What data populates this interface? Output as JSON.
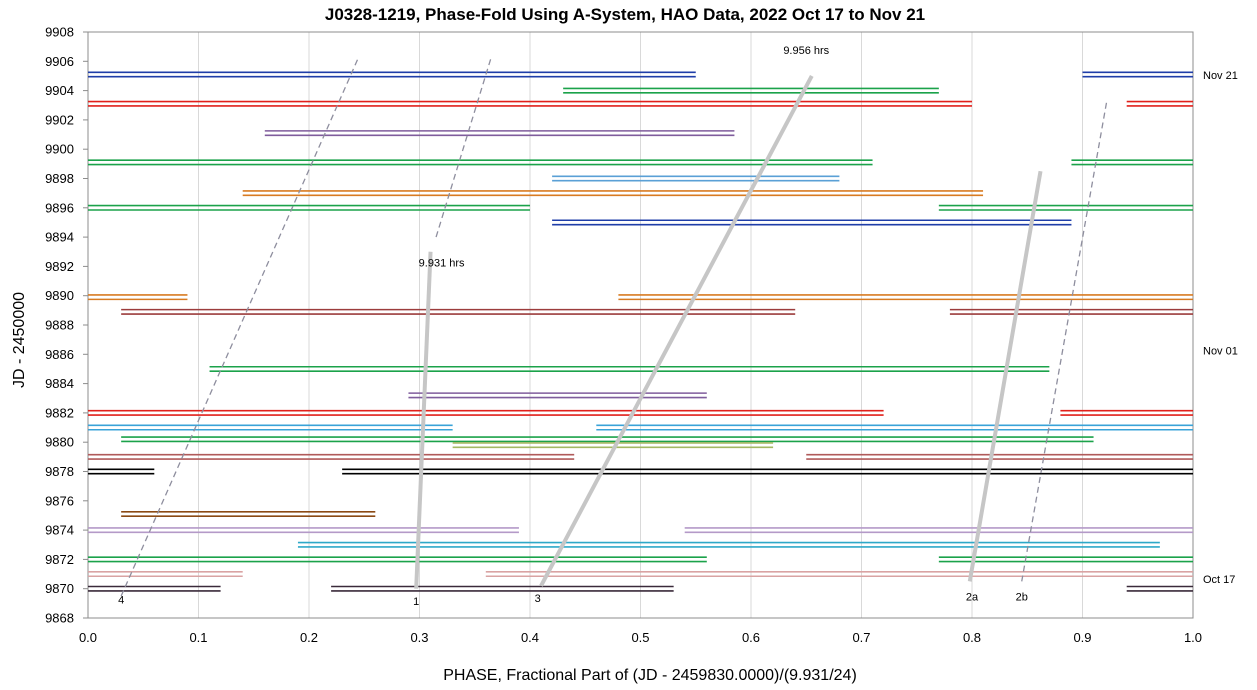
{
  "chart_data": {
    "type": "line",
    "title": "J0328-1219, Phase-Fold Using A-System, HAO Data, 2022 Oct 17 to Nov 21",
    "xlabel": "PHASE, Fractional Part of (JD - 2459830.0000)/(9.931/24)",
    "ylabel": "JD - 2450000",
    "xlim": [
      0.0,
      1.0
    ],
    "ylim": [
      9868,
      9908
    ],
    "x_ticks": [
      "0.0",
      "0.1",
      "0.2",
      "0.3",
      "0.4",
      "0.5",
      "0.6",
      "0.7",
      "0.8",
      "0.9",
      "1.0"
    ],
    "y_ticks": [
      "9868",
      "9870",
      "9872",
      "9874",
      "9876",
      "9878",
      "9880",
      "9882",
      "9884",
      "9886",
      "9888",
      "9890",
      "9892",
      "9894",
      "9896",
      "9898",
      "9900",
      "9902",
      "9904",
      "9906",
      "9908"
    ],
    "grid": {
      "vertical": true,
      "horizontal": false
    },
    "date_labels": [
      {
        "text": "Nov 21",
        "y": 9904.8
      },
      {
        "text": "Nov 01",
        "y": 9886.0
      },
      {
        "text": "Oct 17",
        "y": 9870.4
      }
    ],
    "annotations": [
      {
        "text": "9.956 hrs",
        "x": 0.65,
        "y": 9906.5
      },
      {
        "text": "9.931 hrs",
        "x": 0.32,
        "y": 9892.0
      },
      {
        "text": "4",
        "x": 0.03,
        "y": 9869.0
      },
      {
        "text": "1",
        "x": 0.297,
        "y": 9868.9
      },
      {
        "text": "3",
        "x": 0.407,
        "y": 9869.1
      },
      {
        "text": "2a",
        "x": 0.8,
        "y": 9869.2
      },
      {
        "text": "2b",
        "x": 0.845,
        "y": 9869.2
      }
    ],
    "trend_lines": [
      {
        "name": "4",
        "style": "dashed",
        "color": "#8e8e9e",
        "from": [
          0.03,
          9869.5
        ],
        "to": [
          0.245,
          9906.3
        ]
      },
      {
        "name": "1a",
        "style": "dashed",
        "color": "#8e8e9e",
        "from": [
          0.315,
          9894.0
        ],
        "to": [
          0.365,
          9906.3
        ]
      },
      {
        "name": "1",
        "style": "solid",
        "color": "#c6c6c6",
        "from": [
          0.297,
          9870.0
        ],
        "to": [
          0.31,
          9893.0
        ]
      },
      {
        "name": "3",
        "style": "solid",
        "color": "#c6c6c6",
        "from": [
          0.41,
          9870.2
        ],
        "to": [
          0.655,
          9905.0
        ]
      },
      {
        "name": "2a",
        "style": "solid",
        "color": "#c6c6c6",
        "from": [
          0.798,
          9870.5
        ],
        "to": [
          0.862,
          9898.5
        ]
      },
      {
        "name": "2b",
        "style": "dashed",
        "color": "#8e8e9e",
        "from": [
          0.845,
          9870.5
        ],
        "to": [
          0.922,
          9903.3
        ]
      }
    ],
    "series": [
      {
        "y": 9905.1,
        "color": "#1f3ea8",
        "segments": [
          [
            0.0,
            0.55
          ],
          [
            0.9,
            1.0
          ]
        ]
      },
      {
        "y": 9904.0,
        "color": "#1ba24a",
        "segments": [
          [
            0.43,
            0.77
          ]
        ]
      },
      {
        "y": 9903.1,
        "color": "#e0201b",
        "segments": [
          [
            0.0,
            0.8
          ],
          [
            0.94,
            1.0
          ]
        ]
      },
      {
        "y": 9901.1,
        "color": "#7f5c9c",
        "segments": [
          [
            0.16,
            0.585
          ]
        ]
      },
      {
        "y": 9899.1,
        "color": "#1ba24a",
        "segments": [
          [
            0.0,
            0.71
          ],
          [
            0.89,
            1.0
          ]
        ]
      },
      {
        "y": 9898.0,
        "color": "#5aa0d6",
        "segments": [
          [
            0.42,
            0.68
          ]
        ]
      },
      {
        "y": 9897.0,
        "color": "#d87b22",
        "segments": [
          [
            0.14,
            0.81
          ]
        ]
      },
      {
        "y": 9896.0,
        "color": "#1ba24a",
        "segments": [
          [
            0.0,
            0.4
          ],
          [
            0.77,
            1.0
          ]
        ]
      },
      {
        "y": 9895.0,
        "color": "#1f3ea8",
        "segments": [
          [
            0.42,
            0.89
          ]
        ]
      },
      {
        "y": 9889.9,
        "color": "#d87b22",
        "segments": [
          [
            0.0,
            0.09
          ],
          [
            0.48,
            1.0
          ]
        ]
      },
      {
        "y": 9888.9,
        "color": "#9c3c3c",
        "segments": [
          [
            0.03,
            0.64
          ],
          [
            0.78,
            1.0
          ]
        ]
      },
      {
        "y": 9885.0,
        "color": "#1ba24a",
        "segments": [
          [
            0.11,
            0.87
          ]
        ]
      },
      {
        "y": 9883.2,
        "color": "#7f5c9c",
        "segments": [
          [
            0.29,
            0.56
          ]
        ]
      },
      {
        "y": 9882.0,
        "color": "#e0201b",
        "segments": [
          [
            0.0,
            0.72
          ],
          [
            0.88,
            1.0
          ]
        ]
      },
      {
        "y": 9881.0,
        "color": "#3aa3d8",
        "segments": [
          [
            0.0,
            0.33
          ],
          [
            0.46,
            1.0
          ]
        ]
      },
      {
        "y": 9880.2,
        "color": "#1ba24a",
        "segments": [
          [
            0.03,
            0.91
          ]
        ]
      },
      {
        "y": 9879.8,
        "color": "#a3b862",
        "segments": [
          [
            0.33,
            0.62
          ]
        ]
      },
      {
        "y": 9879.0,
        "color": "#b05a5a",
        "segments": [
          [
            0.0,
            0.44
          ],
          [
            0.65,
            1.0
          ]
        ]
      },
      {
        "y": 9878.0,
        "color": "#000000",
        "segments": [
          [
            0.0,
            0.06
          ],
          [
            0.23,
            1.0
          ]
        ]
      },
      {
        "y": 9875.1,
        "color": "#8b4a14",
        "segments": [
          [
            0.03,
            0.26
          ]
        ]
      },
      {
        "y": 9874.0,
        "color": "#b49ac8",
        "segments": [
          [
            0.0,
            0.39
          ],
          [
            0.54,
            1.0
          ]
        ]
      },
      {
        "y": 9873.0,
        "color": "#2ea8c8",
        "segments": [
          [
            0.19,
            0.97
          ]
        ]
      },
      {
        "y": 9872.0,
        "color": "#1ba24a",
        "segments": [
          [
            0.0,
            0.56
          ],
          [
            0.77,
            1.0
          ]
        ]
      },
      {
        "y": 9871.0,
        "color": "#d9a3a3",
        "segments": [
          [
            0.0,
            0.14
          ],
          [
            0.36,
            1.0
          ]
        ]
      },
      {
        "y": 9870.0,
        "color": "#3a2a3a",
        "segments": [
          [
            0.0,
            0.12
          ],
          [
            0.22,
            0.53
          ],
          [
            0.94,
            1.0
          ]
        ]
      }
    ]
  }
}
